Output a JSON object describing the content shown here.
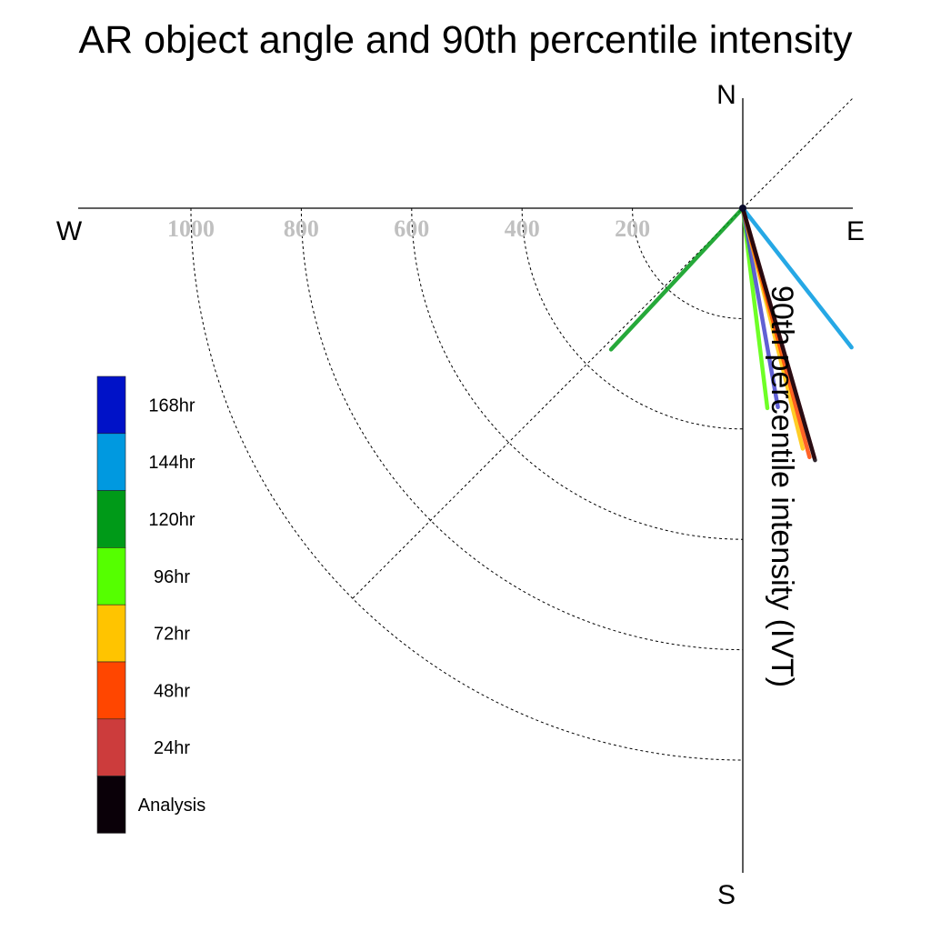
{
  "chart_data": {
    "type": "radial-vector",
    "title": "AR object angle and 90th percentile intensity",
    "ylabel": "90th percentile intensity (IVT)",
    "compass": {
      "north": "N",
      "south": "S",
      "east": "E",
      "west": "W"
    },
    "radial_ticks": [
      "200",
      "400",
      "600",
      "800",
      "1000"
    ],
    "radial_tick_values": [
      200,
      400,
      600,
      800,
      1000
    ],
    "rmax": 1000,
    "grid": true,
    "legend_placement": "left",
    "legend": [
      {
        "label": "168hr",
        "color": "#0012c8"
      },
      {
        "label": "144hr",
        "color": "#0099e0"
      },
      {
        "label": "120hr",
        "color": "#009a18"
      },
      {
        "label": "96hr",
        "color": "#55ff00"
      },
      {
        "label": "72hr",
        "color": "#ffc400"
      },
      {
        "label": "48hr",
        "color": "#ff4600"
      },
      {
        "label": "24hr",
        "color": "#cc3c3c"
      },
      {
        "label": "Analysis",
        "color": "#0a0008"
      }
    ],
    "series": [
      {
        "name": "144hr",
        "color": "#0099e0",
        "angle_deg": 142,
        "intensity": 320
      },
      {
        "name": "120hr",
        "color": "#009a18",
        "angle_deg": 223,
        "intensity": 350
      },
      {
        "name": "96hr",
        "color": "#55ff00",
        "angle_deg": 173,
        "intensity": 365
      },
      {
        "name": "168hr",
        "color": "#4444cc",
        "angle_deg": 170,
        "intensity": 366
      },
      {
        "name": "72hr",
        "color": "#ffc400",
        "angle_deg": 166,
        "intensity": 449
      },
      {
        "name": "48hr",
        "color": "#ff4600",
        "angle_deg": 165,
        "intensity": 467
      },
      {
        "name": "24hr",
        "color": "#cc3c3c",
        "angle_deg": 164,
        "intensity": 470
      },
      {
        "name": "Analysis",
        "color": "#0a0008",
        "angle_deg": 164,
        "intensity": 475
      }
    ]
  }
}
